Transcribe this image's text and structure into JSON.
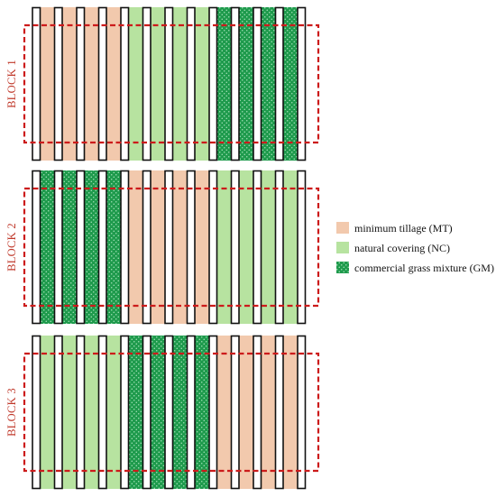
{
  "colors": {
    "MT": "#f2c9ad",
    "NC": "#b7e3a0",
    "GM": "#1e9a4c",
    "GM_dot": "#a6e2ba",
    "row": "#ffffff",
    "row_stroke": "#111111",
    "frame": "#cc1b1b",
    "label": "#c0392b"
  },
  "legend": [
    {
      "key": "MT",
      "label": "minimum tillage (MT)"
    },
    {
      "key": "NC",
      "label": "natural covering (NC)"
    },
    {
      "key": "GM",
      "label": "commercial grass mixture (GM)"
    }
  ],
  "blocks": [
    {
      "label": "BLOCK 1",
      "strips": [
        "MT",
        "MT",
        "MT",
        "MT",
        "NC",
        "NC",
        "NC",
        "NC",
        "GM",
        "GM",
        "GM",
        "GM"
      ]
    },
    {
      "label": "BLOCK 2",
      "strips": [
        "GM",
        "GM",
        "GM",
        "GM",
        "MT",
        "MT",
        "MT",
        "MT",
        "NC",
        "NC",
        "NC",
        "NC"
      ]
    },
    {
      "label": "BLOCK 3",
      "strips": [
        "NC",
        "NC",
        "NC",
        "NC",
        "GM",
        "GM",
        "GM",
        "GM",
        "MT",
        "MT",
        "MT",
        "MT"
      ]
    }
  ]
}
